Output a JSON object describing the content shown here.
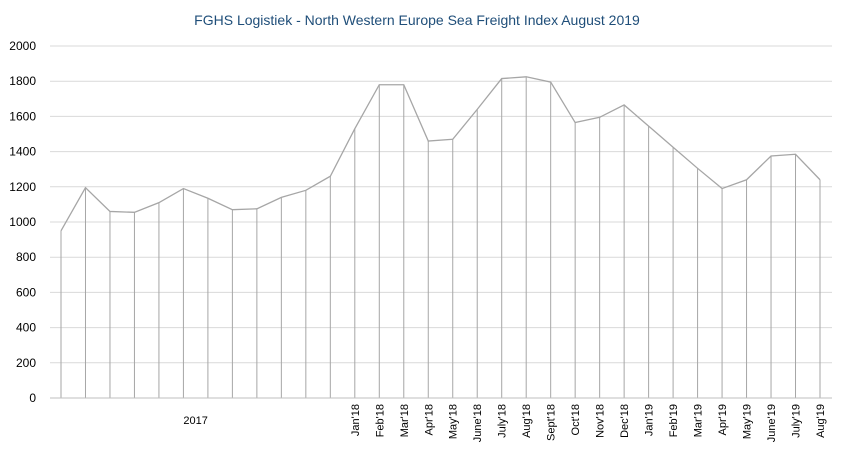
{
  "chart_data": {
    "type": "line",
    "title": "FGHS Logistiek - North Western Europe Sea Freight Index August 2019",
    "xlabel": "",
    "ylabel": "",
    "ylim": [
      0,
      2000
    ],
    "yticks": [
      "0",
      "200",
      "400",
      "600",
      "800",
      "1000",
      "1200",
      "1400",
      "1600",
      "1800",
      "2000"
    ],
    "grid": true,
    "legend": "none",
    "colors": {
      "line": "#a6a6a6",
      "grid": "#d9d9d9",
      "title": "#1f4e79"
    },
    "group_label": "2017",
    "categories": [
      "",
      "",
      "",
      "",
      "",
      "",
      "",
      "",
      "",
      "",
      "",
      "",
      "Jan'18",
      "Feb'18",
      "Mar'18",
      "Apr'18",
      "May'18",
      "June'18",
      "July'18",
      "Aug'18",
      "Sept'18",
      "Oct'18",
      "Nov'18",
      "Dec'18",
      "Jan'19",
      "Feb'19",
      "Mar'19",
      "Apr'19",
      "May'19",
      "June'19",
      "July'19",
      "Aug'19"
    ],
    "values": [
      950,
      1195,
      1060,
      1055,
      1110,
      1190,
      1135,
      1070,
      1075,
      1140,
      1180,
      1260,
      1530,
      1780,
      1780,
      1460,
      1470,
      1640,
      1815,
      1825,
      1795,
      1565,
      1595,
      1665,
      1545,
      1425,
      1305,
      1190,
      1240,
      1375,
      1385,
      1240
    ]
  }
}
